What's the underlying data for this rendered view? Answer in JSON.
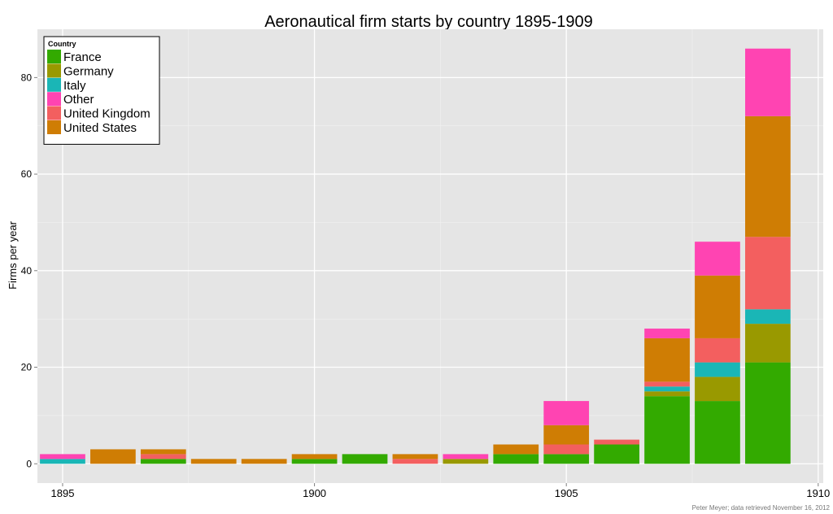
{
  "chart_data": {
    "type": "bar",
    "stacked": true,
    "title": "Aeronautical firm starts by country 1895-1909",
    "xlabel": "",
    "ylabel": "Firms per year",
    "x": [
      1895,
      1896,
      1897,
      1898,
      1899,
      1900,
      1901,
      1902,
      1903,
      1904,
      1905,
      1906,
      1907,
      1908,
      1909
    ],
    "xlim": [
      1894.5,
      1910.1
    ],
    "ylim": [
      -4,
      90
    ],
    "x_ticks": [
      "1895",
      "1900",
      "1905",
      "1910"
    ],
    "x_tick_values": [
      1895,
      1900,
      1905,
      1910
    ],
    "y_ticks": [
      "0",
      "20",
      "40",
      "60",
      "80"
    ],
    "y_tick_values": [
      0,
      20,
      40,
      60,
      80
    ],
    "grid": true,
    "legend": {
      "title": "Country",
      "position": "top-left"
    },
    "series": [
      {
        "name": "France",
        "color": "#33aa00",
        "values": [
          0,
          0,
          1,
          0,
          0,
          1,
          2,
          0,
          0,
          2,
          2,
          4,
          14,
          13,
          21
        ]
      },
      {
        "name": "Germany",
        "color": "#999900",
        "values": [
          0,
          0,
          0,
          0,
          0,
          0,
          0,
          0,
          1,
          0,
          0,
          0,
          1,
          5,
          8
        ]
      },
      {
        "name": "Italy",
        "color": "#1ab6b6",
        "values": [
          1,
          0,
          0,
          0,
          0,
          0,
          0,
          0,
          0,
          0,
          0,
          0,
          1,
          3,
          3
        ]
      },
      {
        "name": "Other",
        "color": "#ff44b2",
        "values": [
          1,
          0,
          0,
          0,
          0,
          0,
          0,
          0,
          1,
          0,
          5,
          0,
          2,
          7,
          14
        ]
      },
      {
        "name": "United Kingdom",
        "color": "#f35f5f",
        "values": [
          0,
          0,
          1,
          0,
          0,
          0,
          0,
          1,
          0,
          0,
          2,
          1,
          1,
          5,
          15
        ]
      },
      {
        "name": "United States",
        "color": "#cf7d04",
        "values": [
          0,
          3,
          1,
          1,
          1,
          1,
          0,
          1,
          0,
          2,
          4,
          0,
          9,
          13,
          25
        ]
      }
    ],
    "stack_order": [
      "France",
      "Germany",
      "Italy",
      "United Kingdom",
      "United States",
      "Other"
    ],
    "caption": "Peter Meyer; data retrieved November 16, 2012"
  }
}
